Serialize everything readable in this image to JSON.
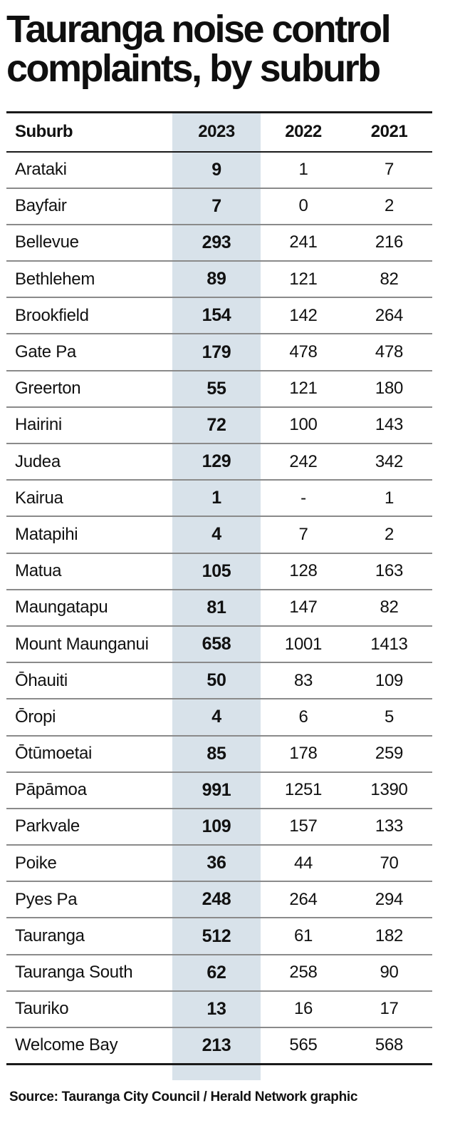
{
  "chart_data": {
    "type": "table",
    "title": "Tauranga noise control complaints, by suburb",
    "columns": [
      "Suburb",
      "2023",
      "2022",
      "2021"
    ],
    "highlight_column": "2023",
    "rows": [
      [
        "Arataki",
        "9",
        "1",
        "7"
      ],
      [
        "Bayfair",
        "7",
        "0",
        "2"
      ],
      [
        "Bellevue",
        "293",
        "241",
        "216"
      ],
      [
        "Bethlehem",
        "89",
        "121",
        "82"
      ],
      [
        "Brookfield",
        "154",
        "142",
        "264"
      ],
      [
        "Gate Pa",
        "179",
        "478",
        "478"
      ],
      [
        "Greerton",
        "55",
        "121",
        "180"
      ],
      [
        "Hairini",
        "72",
        "100",
        "143"
      ],
      [
        "Judea",
        "129",
        "242",
        "342"
      ],
      [
        "Kairua",
        "1",
        "-",
        "1"
      ],
      [
        "Matapihi",
        "4",
        "7",
        "2"
      ],
      [
        "Matua",
        "105",
        "128",
        "163"
      ],
      [
        "Maungatapu",
        "81",
        "147",
        "82"
      ],
      [
        "Mount Maunganui",
        "658",
        "1001",
        "1413"
      ],
      [
        "Ōhauiti",
        "50",
        "83",
        "109"
      ],
      [
        "Ōropi",
        "4",
        "6",
        "5"
      ],
      [
        "Ōtūmoetai",
        "85",
        "178",
        "259"
      ],
      [
        "Pāpāmoa",
        "991",
        "1251",
        "1390"
      ],
      [
        "Parkvale",
        "109",
        "157",
        "133"
      ],
      [
        "Poike",
        "36",
        "44",
        "70"
      ],
      [
        "Pyes Pa",
        "248",
        "264",
        "294"
      ],
      [
        "Tauranga",
        "512",
        "61",
        "182"
      ],
      [
        "Tauranga South",
        "62",
        "258",
        "90"
      ],
      [
        "Tauriko",
        "13",
        "16",
        "17"
      ],
      [
        "Welcome Bay",
        "213",
        "565",
        "568"
      ]
    ],
    "source": "Source: Tauranga City Council / Herald Network graphic"
  },
  "colors": {
    "highlight_column_bg": "#d8e2ea",
    "text": "#111111",
    "rule_dark": "#1a1a1a",
    "rule_light": "#8a8a8a"
  }
}
